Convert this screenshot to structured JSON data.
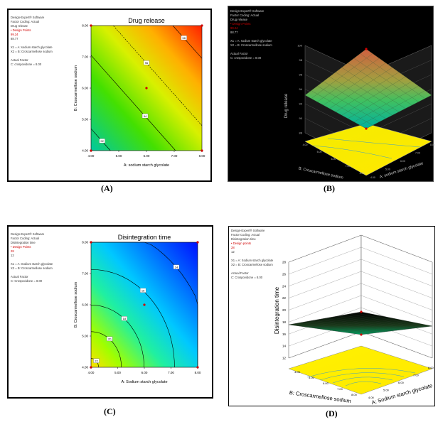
{
  "captions": {
    "a": "(A)",
    "b": "(B)",
    "c": "(C)",
    "d": "(D)"
  },
  "info_a": {
    "line1": "Design-Expert® Software",
    "line2": "Factor Coding: Actual",
    "line3": "Drug release",
    "line4": "Design Points",
    "line5": "99.24",
    "line6": "88.77",
    "line7": "X1 = A: sodium starch glycolate",
    "line8": "X2 = B: Croscarmellose sodium",
    "line9": "Actual Factor",
    "line10": "C: crospovidone = 8.00"
  },
  "info_b": {
    "line1": "Design-Expert® Software",
    "line2": "Factor Coding: Actual",
    "line3": "Drug release",
    "line4": "Design Points",
    "line5": "99.24",
    "line6": "88.77",
    "line7": "X1 = A: sodium starch glycolate",
    "line8": "X2 = B: Croscarmellose sodium",
    "line9": "Actual Factor",
    "line10": "C: crospovidone = 8.00"
  },
  "info_c": {
    "line1": "Design-Expert® Software",
    "line2": "Factor Coding: Actual",
    "line3": "Disintegration time",
    "line4": "Design Points",
    "line5": "28",
    "line6": "12",
    "line7": "X1 = A: Sodium starch glycolate",
    "line8": "X2 = B: Croscarmellose sodium",
    "line9": "Actual Factor",
    "line10": "C: Crospovidone = 8.00"
  },
  "info_d": {
    "line1": "Design-Expert® Software",
    "line2": "Factor Coding: Actual",
    "line3": "Disintegration time",
    "line4": "Design points",
    "line5": "28",
    "line6": "12",
    "line7": "X1 = A: Sodium starch glycolate",
    "line8": "X2 = B: Croscarmellose sodium",
    "line9": "Actual Factor",
    "line10": "C: Crospovidone = 8.00"
  },
  "chart_data": [
    {
      "type": "heatmap",
      "subtype": "contour",
      "panel": "A",
      "title": "Drug release",
      "xlabel": "A: sodium starch glycolate",
      "ylabel": "B: Croscarmellose sodium",
      "x_ticks": [
        "4.00",
        "5.00",
        "6.00",
        "7.00",
        "8.00"
      ],
      "y_ticks": [
        "4.00",
        "5.00",
        "6.00",
        "7.00",
        "8.00"
      ],
      "xlim": [
        4,
        8
      ],
      "ylim": [
        4,
        8
      ],
      "contour_levels": [
        {
          "label": "92",
          "x": 4.4,
          "y": 4.3
        },
        {
          "label": "94",
          "x": 5.95,
          "y": 5.1
        },
        {
          "label": "96",
          "x": 6.0,
          "y": 6.8
        },
        {
          "label": "98",
          "x": 7.35,
          "y": 7.6
        }
      ],
      "design_points": [
        [
          4,
          4
        ],
        [
          8,
          4
        ],
        [
          4,
          8
        ],
        [
          8,
          8
        ],
        [
          6,
          6
        ]
      ]
    },
    {
      "type": "heatmap",
      "subtype": "surface3d",
      "panel": "B",
      "zlabel": "Drug release",
      "xlabel": "A: sodium starch glycolate",
      "ylabel": "B: Croscarmellose sodium",
      "z_ticks": [
        "88",
        "90",
        "92",
        "94",
        "96",
        "98",
        "100"
      ],
      "x_ticks": [
        "4.00",
        "5.00",
        "6.00",
        "7.00",
        "8.00"
      ],
      "y_ticks": [
        "4.00",
        "5.00",
        "6.00",
        "7.00",
        "8.00"
      ],
      "zlim": [
        88,
        100
      ]
    },
    {
      "type": "heatmap",
      "subtype": "contour",
      "panel": "C",
      "title": "Disintegration time",
      "xlabel": "A: Sodium starch glycolate",
      "ylabel": "B: Croscarmellose sodium",
      "x_ticks": [
        "4.00",
        "5.00",
        "6.00",
        "7.00",
        "8.00"
      ],
      "y_ticks": [
        "4.00",
        "5.00",
        "6.00",
        "7.00",
        "8.00"
      ],
      "xlim": [
        4,
        8
      ],
      "ylim": [
        4,
        8
      ],
      "contour_levels": [
        {
          "label": "22",
          "x": 4.2,
          "y": 4.2
        },
        {
          "label": "20",
          "x": 4.7,
          "y": 4.9
        },
        {
          "label": "18",
          "x": 5.25,
          "y": 5.55
        },
        {
          "label": "16",
          "x": 5.95,
          "y": 6.45
        },
        {
          "label": "14",
          "x": 7.2,
          "y": 7.2
        }
      ],
      "design_points": [
        [
          4,
          4
        ],
        [
          8,
          4
        ],
        [
          4,
          8
        ],
        [
          8,
          8
        ],
        [
          6,
          6
        ]
      ]
    },
    {
      "type": "heatmap",
      "subtype": "surface3d",
      "panel": "D",
      "zlabel": "Disintegration time",
      "xlabel": "A: Sodium starch glycolate",
      "ylabel": "B: Croscarmellose sodium",
      "z_ticks": [
        "12",
        "14",
        "16",
        "18",
        "20",
        "22",
        "24",
        "26",
        "28"
      ],
      "x_ticks": [
        "4.00",
        "5.00",
        "6.00",
        "7.00",
        "8.00"
      ],
      "y_ticks": [
        "4.00",
        "5.00",
        "6.00",
        "7.00",
        "8.00"
      ],
      "zlim": [
        12,
        28
      ]
    }
  ]
}
